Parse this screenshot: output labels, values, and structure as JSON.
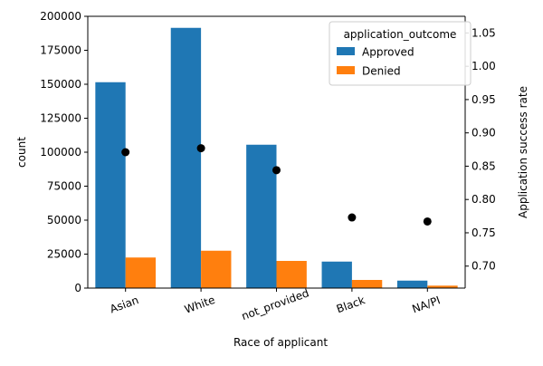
{
  "chart_data": {
    "type": "bar",
    "title": "",
    "xlabel": "Race of applicant",
    "ylabel": "count",
    "ylabel_right": "Application success rate",
    "categories": [
      "Asian",
      "White",
      "not_provided",
      "Black",
      "NA/PI"
    ],
    "series": [
      {
        "name": "Approved",
        "color": "#1f77b4",
        "values": [
          151500,
          191500,
          105500,
          19500,
          5500
        ]
      },
      {
        "name": "Denied",
        "color": "#ff7f0e",
        "values": [
          22500,
          27500,
          20000,
          6000,
          1800
        ]
      }
    ],
    "overlay": {
      "type": "scatter",
      "axis": "right",
      "color": "#000000",
      "values": [
        0.871,
        0.877,
        0.844,
        0.773,
        0.767
      ]
    },
    "ylim": [
      0,
      200000
    ],
    "ylim_right": [
      0.667,
      1.075
    ],
    "yticks": [
      "0",
      "25000",
      "50000",
      "75000",
      "100000",
      "125000",
      "150000",
      "175000",
      "200000"
    ],
    "yticks_right": [
      "0.70",
      "0.75",
      "0.80",
      "0.85",
      "0.90",
      "0.95",
      "1.00",
      "1.05"
    ],
    "legend": {
      "title": "application_outcome",
      "placement": "top-right",
      "entries": [
        "Approved",
        "Denied"
      ]
    },
    "grid": false
  }
}
